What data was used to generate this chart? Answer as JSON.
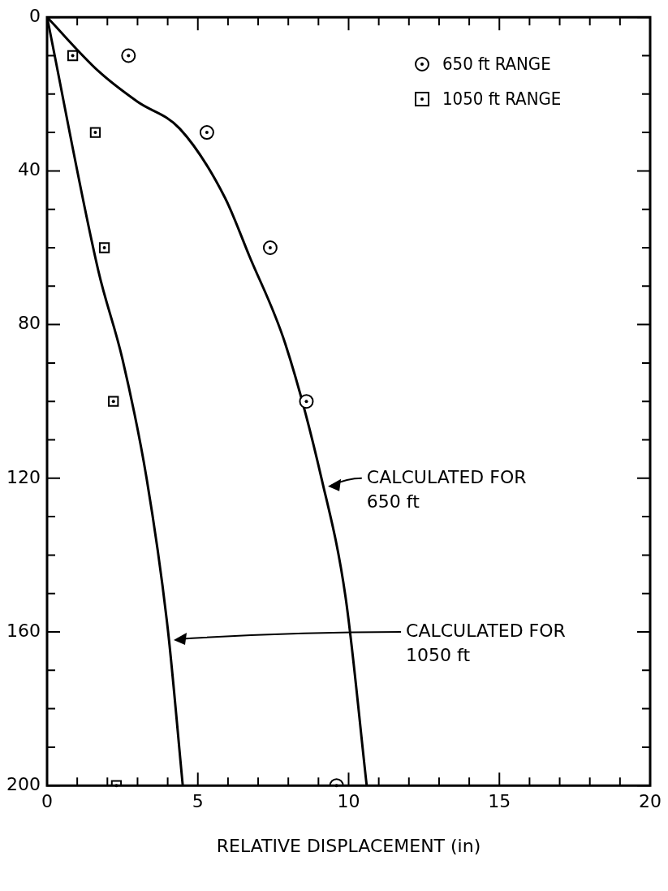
{
  "chart_data": {
    "type": "scatter",
    "xlabel": "RELATIVE DISPLACEMENT (in)",
    "xlim": [
      0,
      20
    ],
    "ylim": [
      200,
      0
    ],
    "xticks": [
      0,
      {
        "value": 1,
        "label": null
      },
      {
        "value": 2,
        "label": null
      },
      {
        "value": 3,
        "label": null
      },
      {
        "value": 4,
        "label": null
      },
      5,
      {
        "value": 6,
        "label": null
      },
      {
        "value": 7,
        "label": null
      },
      {
        "value": 8,
        "label": null
      },
      {
        "value": 9,
        "label": null
      },
      10,
      {
        "value": 11,
        "label": null
      },
      {
        "value": 12,
        "label": null
      },
      {
        "value": 13,
        "label": null
      },
      {
        "value": 14,
        "label": null
      },
      15,
      {
        "value": 16,
        "label": null
      },
      {
        "value": 17,
        "label": null
      },
      {
        "value": 18,
        "label": null
      },
      {
        "value": 19,
        "label": null
      },
      20
    ],
    "yticks": [
      0,
      {
        "value": 10,
        "label": null
      },
      {
        "value": 20,
        "label": null
      },
      {
        "value": 30,
        "label": null
      },
      40,
      {
        "value": 50,
        "label": null
      },
      {
        "value": 60,
        "label": null
      },
      {
        "value": 70,
        "label": null
      },
      80,
      {
        "value": 90,
        "label": null
      },
      {
        "value": 100,
        "label": null
      },
      {
        "value": 110,
        "label": null
      },
      120,
      {
        "value": 130,
        "label": null
      },
      {
        "value": 140,
        "label": null
      },
      {
        "value": 150,
        "label": null
      },
      160,
      {
        "value": 170,
        "label": null
      },
      {
        "value": 180,
        "label": null
      },
      {
        "value": 190,
        "label": null
      },
      200
    ],
    "grid": false,
    "legend": "top right",
    "series": [
      {
        "name": "650 ft RANGE",
        "marker": "circle",
        "color": "#000000",
        "x": [
          2.7,
          5.3,
          7.4,
          8.6,
          9.6
        ],
        "values": [
          10,
          30,
          60,
          100,
          200
        ]
      },
      {
        "name": "1050 ft RANGE",
        "marker": "square",
        "color": "#000000",
        "x": [
          0.85,
          1.6,
          1.9,
          2.2,
          2.3
        ],
        "values": [
          10,
          30,
          60,
          100,
          200
        ]
      },
      {
        "type": "line",
        "marker": "none",
        "line_style": "solid",
        "color": "#000000",
        "x": [
          0,
          1.7,
          3.0,
          4.4,
          5.9,
          6.7,
          7.9,
          9.1,
          9.9,
          10.6
        ],
        "values": [
          0,
          14,
          22,
          29,
          47,
          62,
          85,
          120,
          151,
          200
        ]
      },
      {
        "type": "line",
        "marker": "none",
        "line_style": "solid",
        "color": "#000000",
        "x": [
          0,
          1.7,
          2.5,
          3.3,
          4.0,
          4.5
        ],
        "values": [
          0,
          66,
          89,
          120,
          159,
          200
        ]
      }
    ],
    "annotations": [
      "CALCULATED FOR 650 ft",
      "CALCULATED FOR 1050 ft"
    ]
  }
}
